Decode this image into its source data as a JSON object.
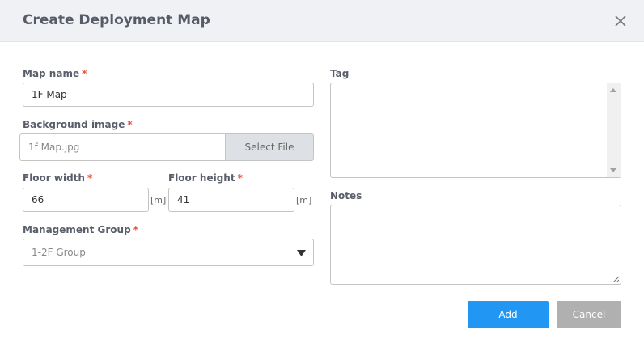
{
  "dialog": {
    "title": "Create Deployment Map",
    "close_icon": "close-icon"
  },
  "form": {
    "required_mark": "*",
    "map_name": {
      "label": "Map name",
      "value": "1F Map"
    },
    "background_image": {
      "label": "Background image",
      "value": "1f Map.jpg",
      "button": "Select File"
    },
    "floor_width": {
      "label": "Floor width",
      "value": "66",
      "unit": "[m]"
    },
    "floor_height": {
      "label": "Floor height",
      "value": "41",
      "unit": "[m]"
    },
    "management_group": {
      "label": "Management Group",
      "value": "1-2F Group"
    },
    "tag": {
      "label": "Tag",
      "value": ""
    },
    "notes": {
      "label": "Notes",
      "value": ""
    }
  },
  "actions": {
    "add": "Add",
    "cancel": "Cancel"
  },
  "colors": {
    "primary": "#2196f3",
    "cancel": "#b0b0b0",
    "required": "#e5533d"
  }
}
